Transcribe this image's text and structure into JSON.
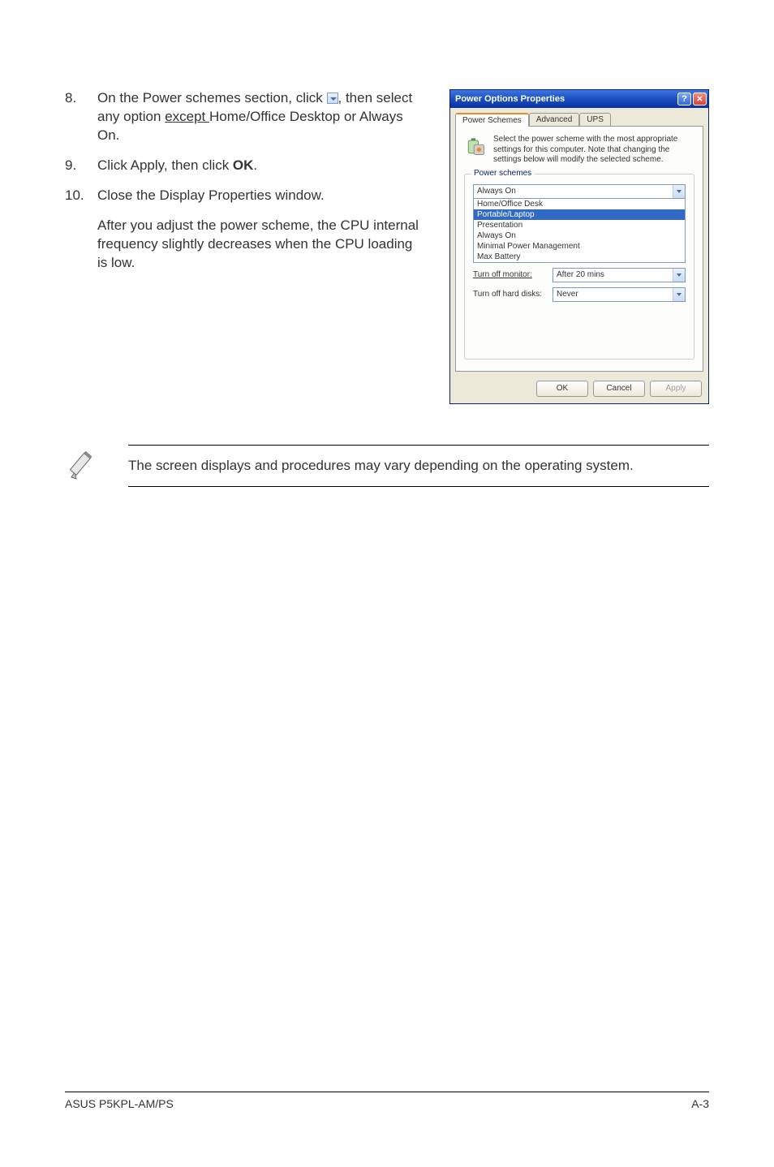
{
  "steps": [
    {
      "num": "8.",
      "html": "On the Power schemes section, click {DD}, then select any option <span class='underline'>except </span>Home/Office Desktop or Always On."
    },
    {
      "num": "9.",
      "html": "Click Apply, then click <span class='bold'>OK</span>."
    },
    {
      "num": "10.",
      "html": "Close the Display Properties window."
    }
  ],
  "after_paragraph": "After you adjust the power scheme, the CPU internal frequency slightly decreases when the CPU loading is low.",
  "dialog": {
    "title": "Power Options Properties",
    "tabs": [
      "Power Schemes",
      "Advanced",
      "UPS"
    ],
    "intro": "Select the power scheme with the most appropriate settings for this computer. Note that changing the settings below will modify the selected scheme.",
    "group_legend": "Power schemes",
    "combo_value": "Always On",
    "options": [
      "Home/Office Desk",
      "Portable/Laptop",
      "Presentation",
      "Always On",
      "Minimal Power Management",
      "Max Battery"
    ],
    "selected_option": "Portable/Laptop",
    "row1_label": "Turn off monitor:",
    "row1_value": "After 20 mins",
    "row2_label": "Turn off hard disks:",
    "row2_value": "Never",
    "btn_ok": "OK",
    "btn_cancel": "Cancel",
    "btn_apply": "Apply"
  },
  "note": "The screen displays and procedures may vary depending on the operating system.",
  "footer_left": "ASUS P5KPL-AM/PS",
  "footer_right": "A-3"
}
